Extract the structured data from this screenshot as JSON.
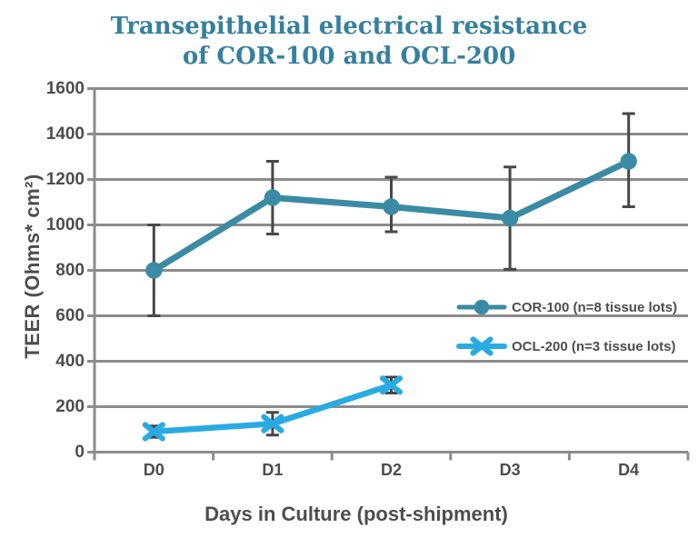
{
  "chart_data": {
    "type": "line",
    "title_line1": "Transepithelial electrical resistance",
    "title_line2": "of COR-100 and OCL-200",
    "xlabel": "Days in Culture (post-shipment)",
    "ylabel": "TEER (Ohms* cm²)",
    "categories": [
      "D0",
      "D1",
      "D2",
      "D3",
      "D4"
    ],
    "ylim": [
      0,
      1600
    ],
    "ytick_step": 200,
    "yticks": [
      0,
      200,
      400,
      600,
      800,
      1000,
      1200,
      1400,
      1600
    ],
    "grid": "horizontal",
    "legend_position": "middle-right",
    "series": [
      {
        "name": "COR-100 (n=8 tissue lots)",
        "slug": "cor-100",
        "marker": "circle",
        "color": "#3b8ba4",
        "x": [
          0,
          1,
          2,
          3,
          4
        ],
        "values": [
          800,
          1120,
          1080,
          1030,
          1280
        ],
        "err_lo": [
          600,
          960,
          970,
          805,
          1080
        ],
        "err_hi": [
          1000,
          1280,
          1210,
          1255,
          1490
        ]
      },
      {
        "name": "OCL-200 (n=3 tissue lots)",
        "slug": "ocl-200",
        "marker": "x",
        "color": "#29abe2",
        "x": [
          0,
          1,
          2
        ],
        "values": [
          90,
          125,
          295
        ],
        "err_lo": [
          65,
          75,
          260
        ],
        "err_hi": [
          115,
          175,
          330
        ]
      }
    ],
    "colors": {
      "title": "#35809e",
      "grid": "#8c8c8c",
      "axis": "#8c8c8c",
      "error_bar": "#474747",
      "text": "#4d4d4d"
    }
  }
}
